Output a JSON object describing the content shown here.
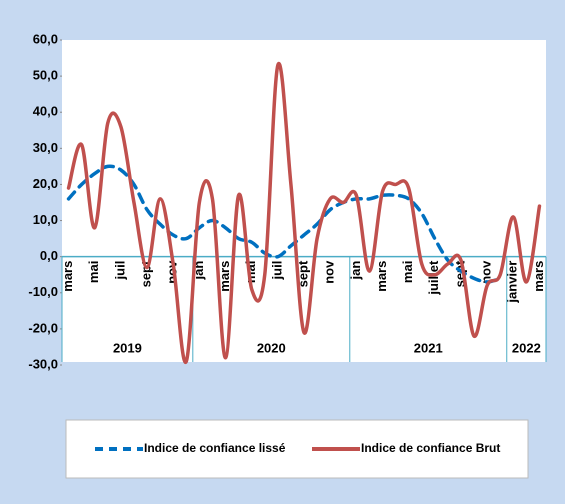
{
  "chart_data": {
    "type": "line",
    "categories": [
      "mars",
      null,
      "mai",
      null,
      "juil",
      null,
      "sept",
      null,
      "nov",
      null,
      "jan",
      null,
      "mars",
      null,
      "mai",
      null,
      "juil",
      null,
      "sept",
      null,
      "nov",
      null,
      "jan",
      null,
      "mars",
      null,
      "mai",
      null,
      "juillet",
      null,
      "sept",
      null,
      "nov",
      null,
      "janvier",
      null,
      "mars"
    ],
    "year_groups": [
      {
        "label": "2019",
        "months": 10
      },
      {
        "label": "2020",
        "months": 12
      },
      {
        "label": "2021",
        "months": 12
      },
      {
        "label": "2022",
        "months": 3
      }
    ],
    "series": [
      {
        "name": "Indice de confiance lissé",
        "color": "#0070c0",
        "dashed": true,
        "values": [
          16,
          20,
          23,
          25,
          24,
          20,
          13,
          9,
          6,
          5,
          8,
          10,
          8,
          5,
          4,
          1,
          0,
          3,
          6,
          9,
          13,
          15,
          16,
          16,
          17,
          17,
          16,
          12,
          5,
          -1,
          -4,
          -6,
          -7,
          -6,
          null,
          null,
          null
        ]
      },
      {
        "name": "Indice de confiance Brut",
        "color": "#c0504d",
        "dashed": false,
        "values": [
          19,
          31,
          8,
          37,
          36,
          15,
          -3,
          16,
          -2,
          -29,
          15,
          16,
          -28,
          17,
          -9,
          -5,
          53,
          20,
          -21,
          5,
          16,
          15,
          17,
          -4,
          18,
          20,
          19,
          -2,
          -5,
          -2,
          -1,
          -22,
          -8,
          -5,
          11,
          -7,
          14
        ]
      }
    ],
    "ylim": [
      -30,
      60
    ],
    "yticks": [
      {
        "value": -30,
        "label": "-30,0"
      },
      {
        "value": -20,
        "label": "-20,0"
      },
      {
        "value": -10,
        "label": "-10,0"
      },
      {
        "value": 0,
        "label": "0,0"
      },
      {
        "value": 10,
        "label": "10,0"
      },
      {
        "value": 20,
        "label": "20,0"
      },
      {
        "value": 30,
        "label": "30,0"
      },
      {
        "value": 40,
        "label": "40,0"
      },
      {
        "value": 50,
        "label": "50,0"
      },
      {
        "value": 60,
        "label": "60,0"
      }
    ],
    "grid": false,
    "legend": "bottom"
  }
}
